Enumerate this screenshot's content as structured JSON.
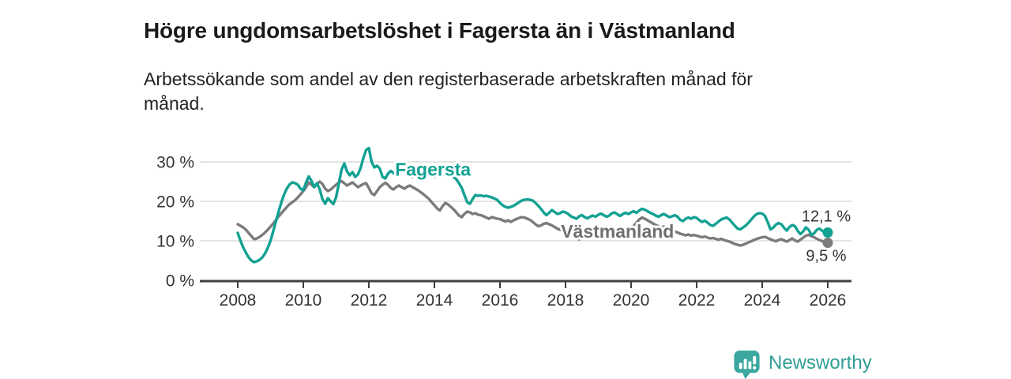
{
  "header": {
    "title": "Högre ungdomsarbetslöshet i Fagersta än i Västmanland",
    "subtitle": "Arbetssökande som andel av den registerbaserade arbetskraften månad för månad."
  },
  "footer": {
    "brand": "Newsworthy",
    "logo_icon": "bar-chart-speech-bubble-icon",
    "brand_color": "#2f9e94",
    "icon_color": "#3aa89e"
  },
  "colors": {
    "fagersta": "#12a192",
    "vastmanland": "#7b7b7e",
    "vastmanland_label": "#6f6f73",
    "grid": "#dcdcdc",
    "axis": "#3f3f3f",
    "tick_text": "#333333"
  },
  "chart_data": {
    "type": "line",
    "title": "Högre ungdomsarbetslöshet i Fagersta än i Västmanland",
    "subtitle": "Arbetssökande som andel av den registerbaserade arbetskraften månad för månad.",
    "unit": "%",
    "x_start_year": 2008,
    "x_step_years": 0.083333,
    "xlim": [
      2006.85,
      2026.85
    ],
    "ylim": [
      0,
      34
    ],
    "grid": "horizontal",
    "legend_position": "inline-labels",
    "x_ticks": [
      {
        "value": 2008,
        "label": "2008"
      },
      {
        "value": 2010,
        "label": "2010"
      },
      {
        "value": 2012,
        "label": "2012"
      },
      {
        "value": 2014,
        "label": "2014"
      },
      {
        "value": 2016,
        "label": "2016"
      },
      {
        "value": 2018,
        "label": "2018"
      },
      {
        "value": 2020,
        "label": "2020"
      },
      {
        "value": 2022,
        "label": "2022"
      },
      {
        "value": 2024,
        "label": "2024"
      },
      {
        "value": 2026,
        "label": "2026"
      }
    ],
    "y_ticks": [
      {
        "value": 0,
        "label": "0 %"
      },
      {
        "value": 10,
        "label": "10 %"
      },
      {
        "value": 20,
        "label": "20 %"
      },
      {
        "value": 30,
        "label": "30 %"
      }
    ],
    "series": [
      {
        "name": "Västmanland",
        "color": "#7b7b7e",
        "label_color": "#6f6f73",
        "end_label": "9,5 %",
        "end_value": 9.5,
        "label_pos": {
          "x": 2017.86,
          "y": 10.8
        },
        "values": [
          14.2,
          13.8,
          13.4,
          12.8,
          12.0,
          11.2,
          10.4,
          10.6,
          11.0,
          11.5,
          12.1,
          12.8,
          13.6,
          14.4,
          15.3,
          16.2,
          17.0,
          17.8,
          18.6,
          19.3,
          19.8,
          20.3,
          21.0,
          21.8,
          22.6,
          23.6,
          24.8,
          24.2,
          23.6,
          24.4,
          25.0,
          24.4,
          23.2,
          22.6,
          23.0,
          23.6,
          24.2,
          24.8,
          25.1,
          24.6,
          24.0,
          24.4,
          24.8,
          24.2,
          23.6,
          24.0,
          24.4,
          24.6,
          23.4,
          22.0,
          21.6,
          22.6,
          23.6,
          24.2,
          24.7,
          24.2,
          23.4,
          23.0,
          23.6,
          24.0,
          23.6,
          23.2,
          23.7,
          24.0,
          23.6,
          23.2,
          22.8,
          22.3,
          21.8,
          21.2,
          20.6,
          19.8,
          19.0,
          18.2,
          17.7,
          18.8,
          19.6,
          19.2,
          18.6,
          18.0,
          17.2,
          16.4,
          16.0,
          16.8,
          17.4,
          17.2,
          16.8,
          17.0,
          16.6,
          16.5,
          16.2,
          15.9,
          15.6,
          16.0,
          15.8,
          15.6,
          15.5,
          15.2,
          14.9,
          15.2,
          14.8,
          15.2,
          15.5,
          15.8,
          16.0,
          15.9,
          15.6,
          15.3,
          14.8,
          14.2,
          13.7,
          13.9,
          14.3,
          14.5,
          14.2,
          13.9,
          13.5,
          13.1,
          12.8,
          12.6,
          12.4,
          12.0,
          11.5,
          11.0,
          10.6,
          10.4,
          10.7,
          11.0,
          11.3,
          11.5,
          11.3,
          11.6,
          11.8,
          12.1,
          12.4,
          12.2,
          12.5,
          12.8,
          13.0,
          12.7,
          12.4,
          12.7,
          13.0,
          13.2,
          13.4,
          13.8,
          14.6,
          15.4,
          15.9,
          15.6,
          15.2,
          14.8,
          14.4,
          14.0,
          13.7,
          13.4,
          13.6,
          13.3,
          12.9,
          12.7,
          12.4,
          12.1,
          11.8,
          11.6,
          11.4,
          11.6,
          11.3,
          11.5,
          11.3,
          11.1,
          10.9,
          11.1,
          10.8,
          10.6,
          10.7,
          10.5,
          10.3,
          10.5,
          10.2,
          10.0,
          9.8,
          9.5,
          9.2,
          9.0,
          8.8,
          9.0,
          9.3,
          9.6,
          9.9,
          10.2,
          10.5,
          10.7,
          10.9,
          11.0,
          10.7,
          10.4,
          10.1,
          9.9,
          10.2,
          10.4,
          10.1,
          9.8,
          10.2,
          10.6,
          10.1,
          9.8,
          10.3,
          10.8,
          11.3,
          11.5,
          11.2,
          10.9,
          10.5,
          10.2,
          9.9,
          9.7,
          9.5
        ]
      },
      {
        "name": "Fagersta",
        "color": "#12a192",
        "label_color": "#12a192",
        "end_label": "12,1 %",
        "end_value": 12.1,
        "label_pos": {
          "x": 2012.8,
          "y": 26.5
        },
        "values": [
          12.0,
          10.0,
          8.3,
          7.0,
          5.8,
          5.0,
          4.6,
          4.8,
          5.2,
          5.8,
          6.8,
          8.2,
          10.0,
          12.5,
          15.0,
          17.5,
          19.8,
          21.8,
          23.3,
          24.3,
          24.8,
          24.6,
          24.2,
          23.2,
          22.8,
          24.8,
          26.3,
          25.2,
          23.6,
          24.6,
          23.0,
          20.6,
          19.4,
          20.8,
          20.0,
          19.3,
          21.0,
          24.5,
          28.0,
          29.6,
          27.6,
          26.6,
          27.4,
          26.2,
          26.8,
          28.5,
          31.0,
          33.0,
          33.5,
          30.0,
          28.6,
          29.0,
          28.3,
          26.2,
          25.8,
          27.0,
          27.7,
          27.2,
          26.6,
          27.0,
          27.7,
          28.2,
          27.4,
          26.7,
          26.2,
          26.8,
          27.2,
          26.5,
          26.0,
          26.5,
          26.9,
          26.3,
          26.2,
          26.8,
          27.4,
          27.0,
          26.6,
          27.0,
          26.6,
          26.2,
          25.6,
          24.6,
          23.4,
          21.6,
          19.8,
          19.4,
          20.6,
          21.6,
          21.4,
          21.5,
          21.3,
          21.4,
          21.2,
          21.0,
          20.7,
          20.4,
          19.6,
          19.0,
          18.6,
          18.4,
          18.6,
          18.9,
          19.3,
          19.8,
          20.2,
          20.4,
          20.5,
          20.4,
          20.2,
          19.6,
          18.9,
          18.1,
          17.2,
          16.5,
          17.1,
          17.8,
          17.3,
          16.8,
          17.0,
          17.4,
          17.2,
          16.8,
          16.2,
          15.9,
          15.6,
          16.2,
          16.5,
          16.0,
          15.7,
          16.1,
          16.4,
          16.1,
          16.6,
          16.9,
          16.5,
          16.1,
          16.4,
          17.0,
          17.2,
          16.7,
          16.3,
          16.8,
          17.1,
          16.8,
          17.2,
          17.5,
          17.1,
          17.7,
          18.1,
          17.9,
          17.5,
          17.1,
          16.8,
          16.4,
          16.1,
          16.5,
          16.8,
          16.4,
          16.0,
          16.2,
          16.5,
          16.1,
          15.3,
          15.0,
          15.6,
          15.9,
          15.6,
          16.0,
          15.8,
          15.2,
          14.8,
          15.1,
          14.6,
          14.0,
          13.8,
          14.3,
          14.9,
          15.4,
          15.7,
          15.9,
          15.4,
          14.6,
          13.8,
          13.1,
          12.9,
          13.4,
          13.9,
          14.6,
          15.4,
          16.2,
          16.8,
          17.0,
          16.9,
          16.3,
          14.8,
          12.9,
          13.3,
          14.1,
          14.5,
          14.2,
          13.3,
          12.6,
          13.5,
          14.0,
          13.7,
          12.5,
          11.7,
          12.4,
          13.4,
          12.8,
          11.5,
          11.9,
          12.8,
          13.1,
          12.5,
          12.3,
          12.1
        ]
      }
    ]
  }
}
